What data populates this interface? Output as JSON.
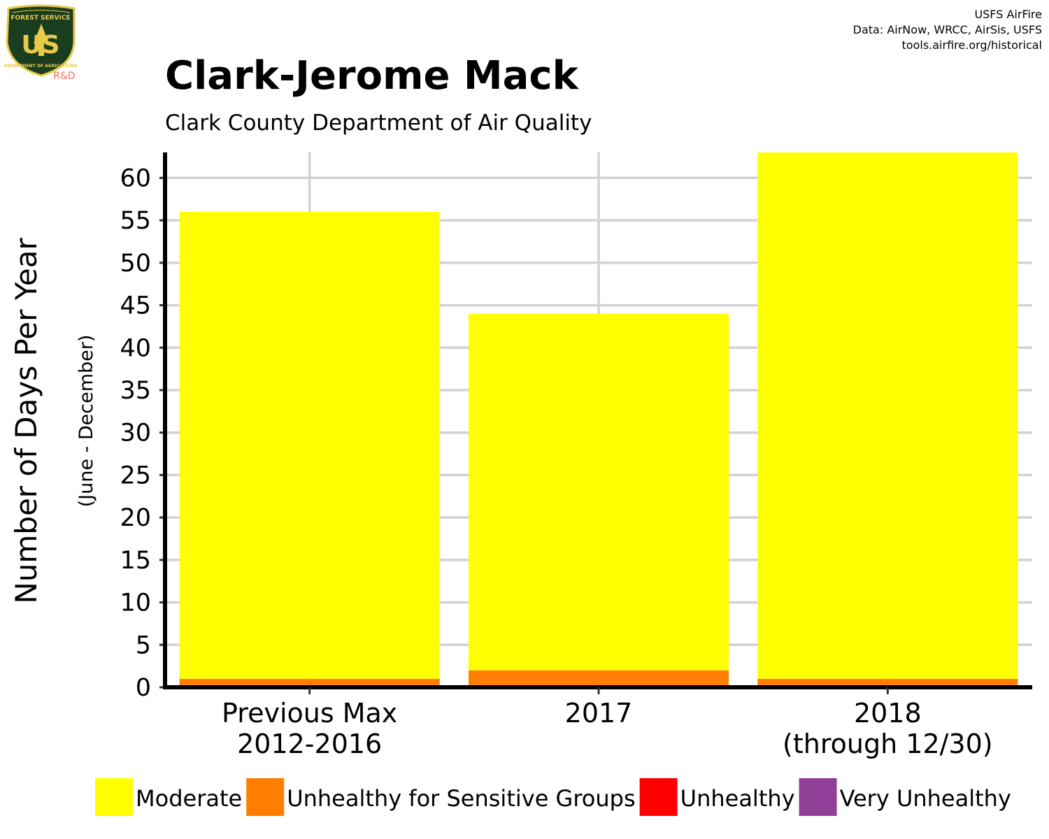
{
  "logo": {
    "letters": "US",
    "arc_top": "FOREST SERVICE",
    "arc_bottom": "DEPARTMENT OF AGRICULTURE",
    "sub": "R&D",
    "colors": {
      "shield": "#1a3d1f",
      "gold": "#e8c94a",
      "sub": "#f07060"
    }
  },
  "credits": {
    "line1": "USFS AirFire",
    "line2": "Data: AirNow, WRCC, AirSis, USFS",
    "line3": "tools.airfire.org/historical"
  },
  "chart_data": {
    "type": "bar",
    "stacked": true,
    "title": "Clark-Jerome Mack",
    "subtitle": "Clark County Department of Air Quality",
    "ylabel": "Number of Days Per Year",
    "ylabel_sub": "(June - December)",
    "xlabel": "",
    "categories": [
      [
        "Previous Max",
        "2012-2016"
      ],
      [
        "2017"
      ],
      [
        "2018",
        "(through 12/30)"
      ]
    ],
    "series": [
      {
        "name": "Unhealthy for Sensitive Groups",
        "color": "#FF7E00",
        "values": [
          1,
          2,
          1
        ]
      },
      {
        "name": "Moderate",
        "color": "#FFFF00",
        "values": [
          55,
          42,
          62
        ]
      },
      {
        "name": "Unhealthy",
        "color": "#FF0000",
        "values": [
          0,
          0,
          0
        ]
      },
      {
        "name": "Very Unhealthy",
        "color": "#8F3F97",
        "values": [
          0,
          0,
          0
        ]
      }
    ],
    "legend_order": [
      "Moderate",
      "Unhealthy for Sensitive Groups",
      "Unhealthy",
      "Very Unhealthy"
    ],
    "legend_position": "bottom",
    "ylim": [
      0,
      63
    ],
    "yticks": [
      0,
      5,
      10,
      15,
      20,
      25,
      30,
      35,
      40,
      45,
      50,
      55,
      60
    ],
    "grid": true
  }
}
